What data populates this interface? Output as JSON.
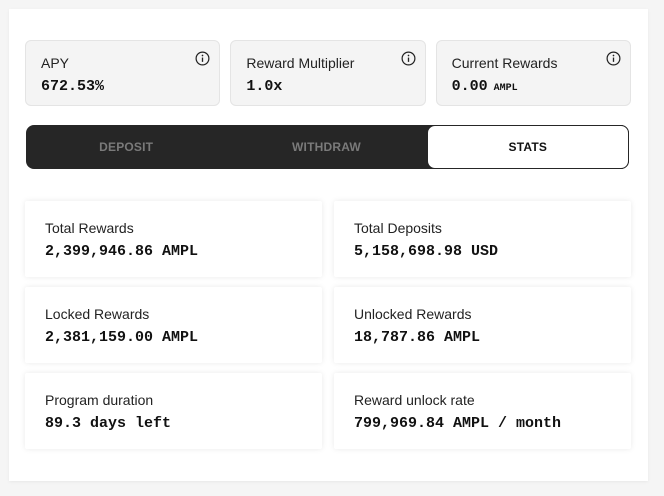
{
  "summary_cards": [
    {
      "label": "APY",
      "value": "672.53%",
      "unit": "",
      "icon": "info-icon"
    },
    {
      "label": "Reward Multiplier",
      "value": "1.0x",
      "unit": "",
      "icon": "info-icon"
    },
    {
      "label": "Current Rewards",
      "value": "0.00",
      "unit": "AMPL",
      "icon": "info-icon"
    }
  ],
  "tabs": [
    {
      "label": "DEPOSIT",
      "active": false
    },
    {
      "label": "WITHDRAW",
      "active": false
    },
    {
      "label": "STATS",
      "active": true
    }
  ],
  "stats": [
    {
      "label": "Total Rewards",
      "value": "2,399,946.86 AMPL"
    },
    {
      "label": "Total Deposits",
      "value": "5,158,698.98 USD"
    },
    {
      "label": "Locked Rewards",
      "value": "2,381,159.00 AMPL"
    },
    {
      "label": "Unlocked Rewards",
      "value": "18,787.86 AMPL"
    },
    {
      "label": "Program duration",
      "value": "89.3 days left"
    },
    {
      "label": "Reward unlock rate",
      "value": "799,969.84 AMPL / month"
    }
  ],
  "colors": {
    "tab_bar_bg": "#262626",
    "tab_inactive_text": "#7a7a7a",
    "tab_active_bg": "#ffffff",
    "card_bg": "#f4f4f4"
  }
}
